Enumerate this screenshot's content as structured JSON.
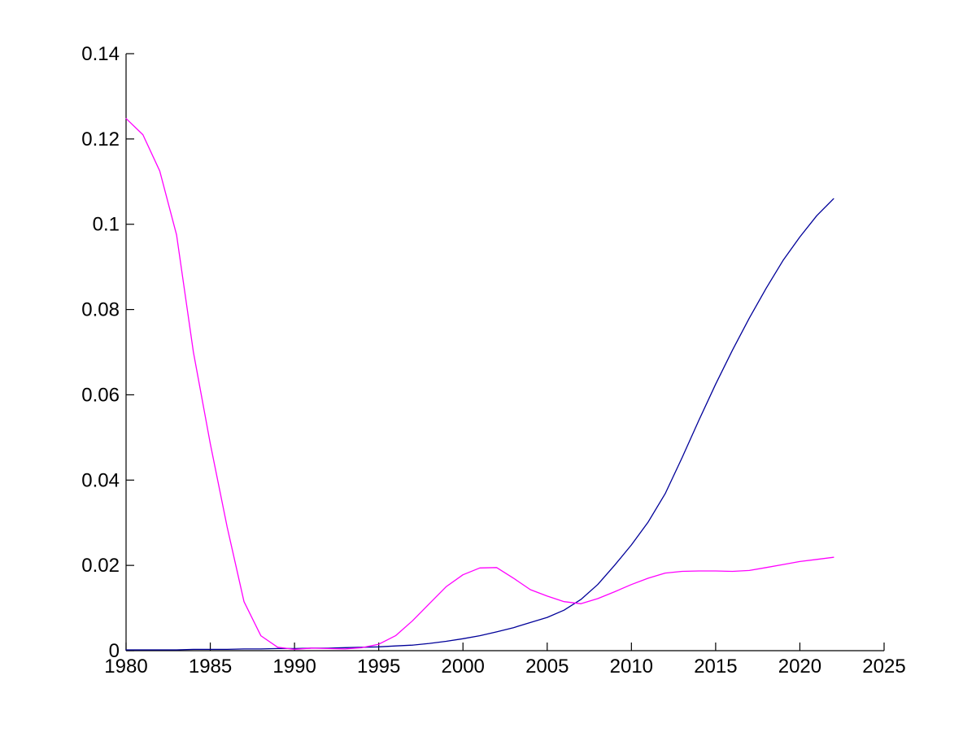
{
  "figure": {
    "background": "#ffffff",
    "axis_color": "#000000",
    "tick_font_px": 24
  },
  "chart_data": {
    "type": "line",
    "title": "",
    "subtitle": "",
    "xlabel": "",
    "ylabel": "",
    "grid": false,
    "legend": "none",
    "box": "off",
    "xlim": [
      1980,
      2025
    ],
    "ylim": [
      0,
      0.14
    ],
    "x_ticks": [
      1980,
      1985,
      1990,
      1995,
      2000,
      2005,
      2010,
      2015,
      2020,
      2025
    ],
    "x_tick_labels": [
      "1980",
      "1985",
      "1990",
      "1995",
      "2000",
      "2005",
      "2010",
      "2015",
      "2020",
      "2025"
    ],
    "y_ticks": [
      0,
      0.02,
      0.04,
      0.06,
      0.08,
      0.1,
      0.12,
      0.14
    ],
    "y_tick_labels": [
      "0",
      "0.02",
      "0.04",
      "0.06",
      "0.08",
      "0.1",
      "0.12",
      "0.14"
    ],
    "x": [
      1980,
      1981,
      1982,
      1983,
      1984,
      1985,
      1986,
      1987,
      1988,
      1989,
      1990,
      1991,
      1992,
      1993,
      1994,
      1995,
      1996,
      1997,
      1998,
      1999,
      2000,
      2001,
      2002,
      2003,
      2004,
      2005,
      2006,
      2007,
      2008,
      2009,
      2010,
      2011,
      2012,
      2013,
      2014,
      2015,
      2016,
      2017,
      2018,
      2019,
      2020,
      2021,
      2022
    ],
    "series": [
      {
        "name": "dark-blue-line",
        "color": "#000099",
        "values": [
          0.0002,
          0.0002,
          0.0002,
          0.0002,
          0.0003,
          0.0003,
          0.0003,
          0.0004,
          0.0004,
          0.0005,
          0.0005,
          0.0006,
          0.0006,
          0.0007,
          0.0008,
          0.0009,
          0.0011,
          0.0013,
          0.0017,
          0.0022,
          0.0028,
          0.0035,
          0.0044,
          0.0054,
          0.0066,
          0.0078,
          0.0095,
          0.012,
          0.0155,
          0.02,
          0.0248,
          0.0302,
          0.0368,
          0.0452,
          0.054,
          0.0625,
          0.0705,
          0.078,
          0.085,
          0.0915,
          0.097,
          0.102,
          0.106
        ]
      },
      {
        "name": "magenta-line",
        "color": "#FF00FF",
        "values": [
          0.1248,
          0.121,
          0.1125,
          0.0975,
          0.07,
          0.0485,
          0.029,
          0.0115,
          0.0035,
          0.0008,
          0.0003,
          0.0006,
          0.0005,
          0.0004,
          0.0007,
          0.0015,
          0.0035,
          0.007,
          0.011,
          0.015,
          0.0178,
          0.0194,
          0.0195,
          0.017,
          0.0143,
          0.0128,
          0.0115,
          0.011,
          0.0122,
          0.0138,
          0.0155,
          0.017,
          0.0182,
          0.0186,
          0.0187,
          0.0187,
          0.0186,
          0.0188,
          0.0195,
          0.0202,
          0.0209,
          0.0214,
          0.0219
        ]
      }
    ]
  }
}
